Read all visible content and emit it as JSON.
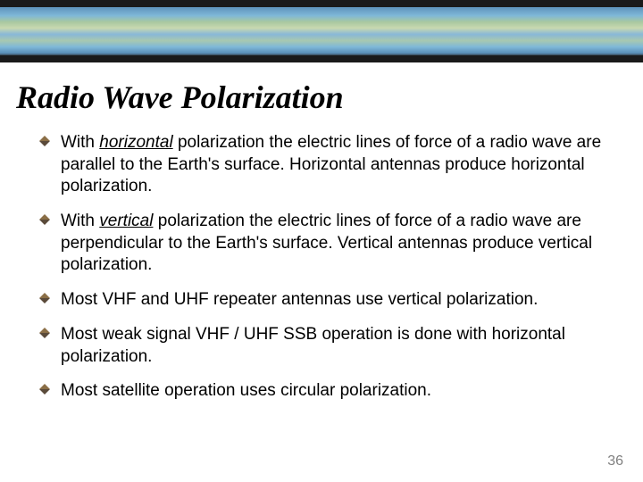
{
  "title": "Radio Wave Polarization",
  "bullets": [
    {
      "before": "With ",
      "emph": "horizontal",
      "after": " polarization the electric lines of force of a radio wave are parallel to the Earth's  surface. Horizontal antennas produce horizontal polarization."
    },
    {
      "before": "With ",
      "emph": "vertical",
      "after": " polarization the electric lines of force of a radio wave are perpendicular to the Earth's surface. Vertical antennas produce vertical polarization."
    },
    {
      "before": "",
      "emph": "",
      "after": "Most VHF and UHF repeater antennas use vertical polarization."
    },
    {
      "before": "",
      "emph": "",
      "after": "Most weak signal VHF / UHF SSB operation is done with horizontal polarization."
    },
    {
      "before": "",
      "emph": "",
      "after": "Most satellite operation uses circular polarization."
    }
  ],
  "page_number": "36",
  "styling": {
    "slide_width": 720,
    "slide_height": 540,
    "background_color": "#ffffff",
    "title_font": "Times New Roman",
    "title_fontsize": 36,
    "title_style": "bold italic",
    "title_color": "#000000",
    "body_font": "Verdana",
    "body_fontsize": 19,
    "body_color": "#000000",
    "bullet_marker_colors": [
      "#8b6f47",
      "#5a4a3a"
    ],
    "page_number_color": "#808080",
    "page_number_fontsize": 16,
    "banner_height": 70,
    "banner_border_color": "#1a1a1a",
    "banner_map_colors": [
      "#5a8fb8",
      "#7fb8d8",
      "#a8c8a0",
      "#c8d8b0",
      "#88b8d8"
    ]
  }
}
